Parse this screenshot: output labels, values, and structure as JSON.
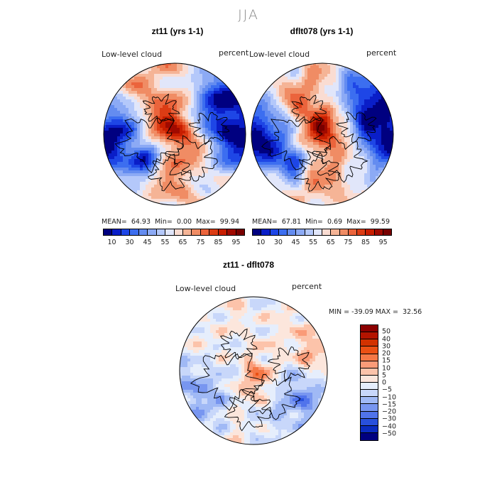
{
  "season": "JJA",
  "panels": [
    {
      "title": "zt11 (yrs 1-1)",
      "variable": "Low-level cloud",
      "units": "percent",
      "stats": {
        "mean_label": "MEAN=",
        "mean": "64.93",
        "min_label": "Min=",
        "min": "0.00",
        "max_label": "Max=",
        "max": "99.94"
      }
    },
    {
      "title": "dflt078 (yrs 1-1)",
      "variable": "Low-level cloud",
      "units": "percent",
      "stats": {
        "mean_label": "MEAN=",
        "mean": "67.81",
        "min_label": "Min=",
        "min": "0.69",
        "max_label": "Max=",
        "max": "99.59"
      }
    },
    {
      "title": "zt11 - dflt078",
      "variable": "Low-level cloud",
      "units": "percent",
      "stats": {
        "min_label": "MIN =",
        "min": "-39.09",
        "max_label": "MAX =",
        "max": "32.56"
      }
    }
  ],
  "chart_data": [
    {
      "type": "heatmap",
      "projection": "polar-stereographic",
      "title": "zt11 (yrs 1-1)",
      "variable": "Low-level cloud",
      "units": "percent",
      "mean": 64.93,
      "min": 0.0,
      "max": 99.94,
      "colorbar_ticks": [
        "10",
        "30",
        "45",
        "55",
        "65",
        "75",
        "85",
        "95"
      ]
    },
    {
      "type": "heatmap",
      "projection": "polar-stereographic",
      "title": "dflt078 (yrs 1-1)",
      "variable": "Low-level cloud",
      "units": "percent",
      "mean": 67.81,
      "min": 0.69,
      "max": 99.59,
      "colorbar_ticks": [
        "10",
        "30",
        "45",
        "55",
        "65",
        "75",
        "85",
        "95"
      ]
    },
    {
      "type": "heatmap",
      "projection": "polar-stereographic",
      "title": "zt11 - dflt078",
      "variable": "Low-level cloud",
      "units": "percent",
      "min": -39.09,
      "max": 32.56,
      "colorbar_ticks": [
        "50",
        "40",
        "30",
        "20",
        "15",
        "10",
        "5",
        "0",
        "−5",
        "−10",
        "−15",
        "−20",
        "−30",
        "−40",
        "−50"
      ]
    }
  ],
  "colors": {
    "abs_scale": [
      "#000080",
      "#0a1ec8",
      "#1e46e6",
      "#3c6ef0",
      "#648cf0",
      "#8caaf5",
      "#b4c8fa",
      "#e1e6fa",
      "#fadcd2",
      "#f5b496",
      "#f08c64",
      "#eb643c",
      "#dc3c14",
      "#c81e00",
      "#a00a00",
      "#780000"
    ],
    "diff_scale": [
      "#8c0000",
      "#b41400",
      "#d23200",
      "#eb5014",
      "#f57846",
      "#fa9b78",
      "#fcc3aa",
      "#fce6dc",
      "#e6eefc",
      "#c8d7fa",
      "#a0b9f5",
      "#7896f0",
      "#5073eb",
      "#2850dc",
      "#0a2cc0",
      "#000080"
    ]
  }
}
